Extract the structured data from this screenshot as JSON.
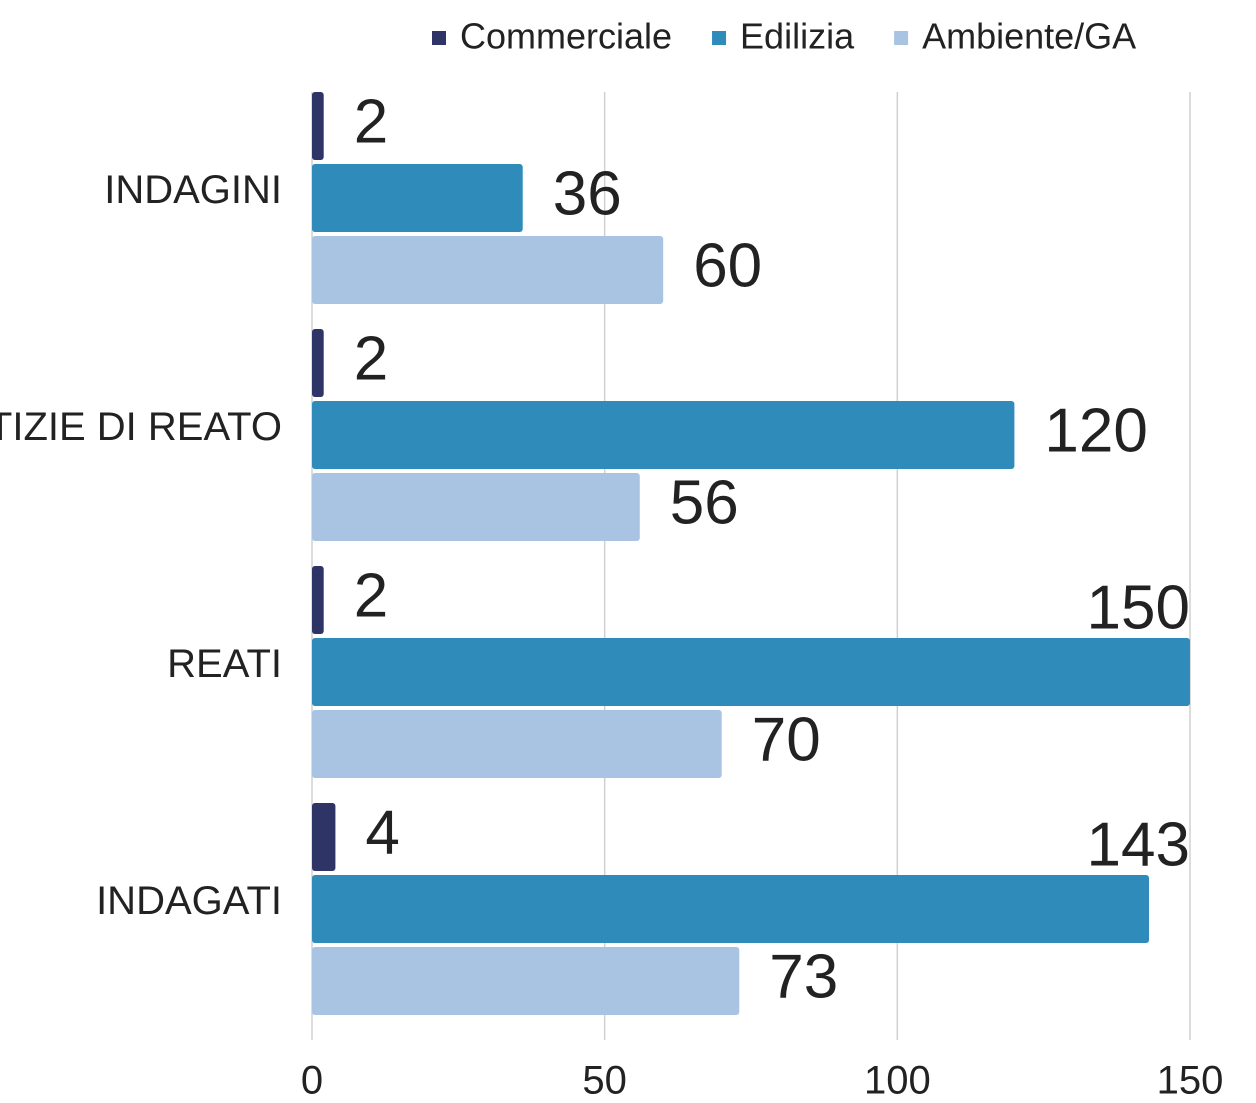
{
  "chart_data": {
    "type": "hbar",
    "categories": [
      "INDAGINI",
      "NOTIZIE DI REATO",
      "REATI",
      "INDAGATI"
    ],
    "series": [
      {
        "name": "Commerciale",
        "color": "#2e3466",
        "values": [
          2,
          2,
          2,
          4
        ]
      },
      {
        "name": "Edilizia",
        "color": "#2e8bba",
        "values": [
          36,
          120,
          150,
          143
        ]
      },
      {
        "name": "Ambiente/GA",
        "color": "#a9c4e3",
        "values": [
          60,
          56,
          70,
          73
        ]
      }
    ],
    "xlim": [
      0,
      150
    ],
    "xticks": [
      0,
      50,
      100,
      150
    ],
    "grid": true,
    "legend": "top"
  }
}
